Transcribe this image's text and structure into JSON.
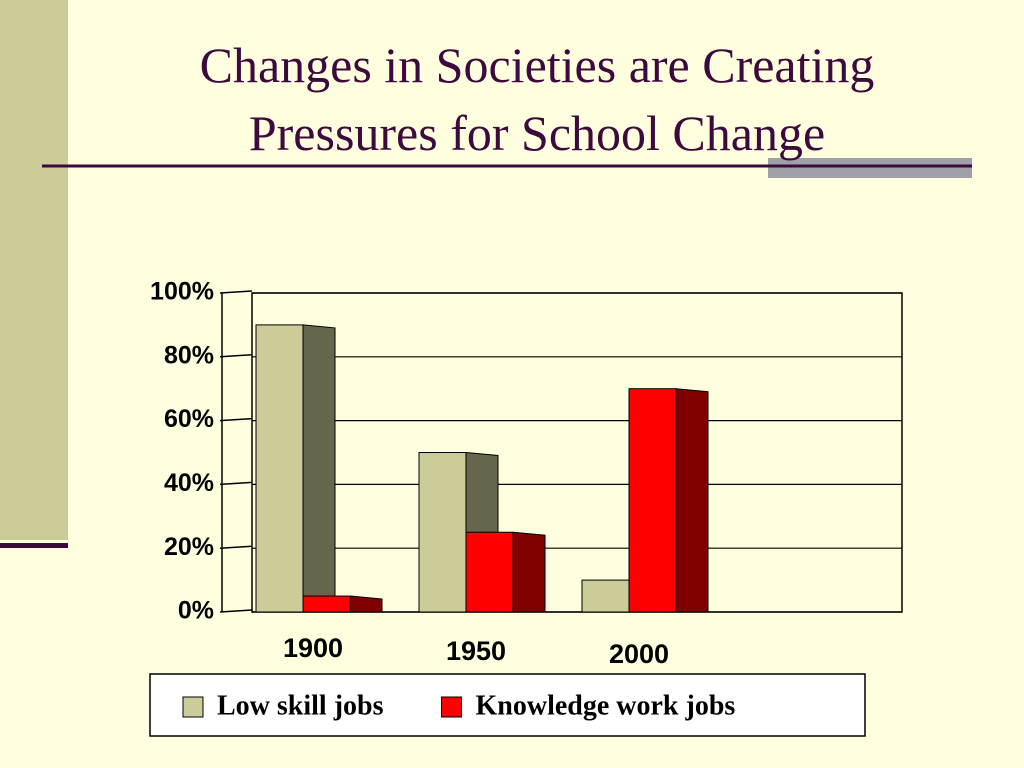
{
  "chart_data": {
    "type": "bar3d",
    "title": [
      "Changes in Societies are Creating",
      "Pressures for School Change"
    ],
    "categories": [
      "1900",
      "1950",
      "2000"
    ],
    "series": [
      {
        "name": "Low skill jobs",
        "color": "#cccc99",
        "values": [
          90,
          50,
          10
        ]
      },
      {
        "name": "Knowledge work jobs",
        "color": "#ff0000",
        "values": [
          5,
          25,
          70
        ]
      }
    ],
    "ylim": [
      0,
      100
    ],
    "yticks": [
      {
        "value": 0,
        "label": "0%"
      },
      {
        "value": 20,
        "label": "20%"
      },
      {
        "value": 40,
        "label": "40%"
      },
      {
        "value": 60,
        "label": "60%"
      },
      {
        "value": 80,
        "label": "80%"
      },
      {
        "value": 100,
        "label": "100%"
      }
    ],
    "grid": true,
    "legend": "bottom"
  }
}
